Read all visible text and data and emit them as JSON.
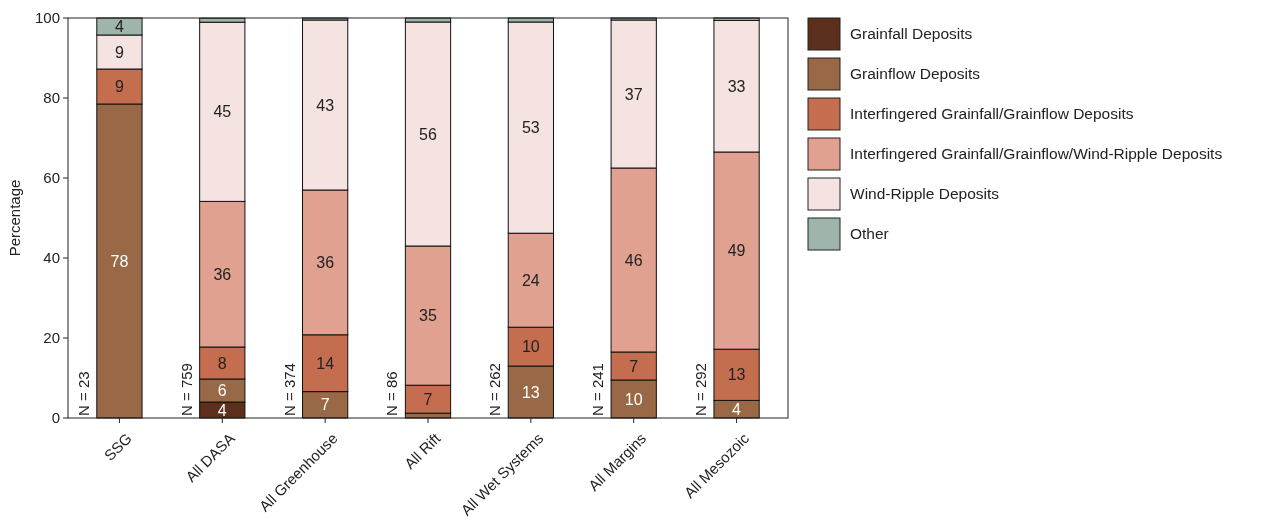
{
  "chart_data": {
    "type": "bar",
    "stacked": true,
    "ylabel": "Percentage",
    "categories": [
      "SSG",
      "All DASA",
      "All Greenhouse",
      "All Rift",
      "All Wet Systems",
      "All Margins",
      "All Mesozoic"
    ],
    "series": [
      {
        "name": "Grainfall Deposits",
        "color": "#5c301c",
        "values": [
          0,
          4,
          0,
          0,
          0,
          0,
          0
        ],
        "value_labels": [
          null,
          "4",
          null,
          null,
          null,
          null,
          null
        ]
      },
      {
        "name": "Grainflow Deposits",
        "color": "#996846",
        "values": [
          78.5,
          5.75,
          6.6,
          1.2,
          13,
          9.5,
          4.4
        ],
        "value_labels": [
          "78",
          "6",
          "7",
          null,
          "13",
          "10",
          "4"
        ]
      },
      {
        "name": "Interfingered Grainfall/Grainflow Deposits",
        "color": "#c46e4f",
        "values": [
          8.75,
          8,
          14.2,
          7,
          9.7,
          7,
          12.8
        ],
        "value_labels": [
          "9",
          "8",
          "14",
          "7",
          "10",
          "7",
          "13"
        ]
      },
      {
        "name": "Interfingered Grainfall/Grainflow/Wind-Ripple Deposits",
        "color": "#e0a190",
        "values": [
          0,
          36.4,
          36.2,
          34.8,
          23.5,
          46,
          49.3
        ],
        "value_labels": [
          null,
          "36",
          "36",
          "35",
          "24",
          "46",
          "49"
        ]
      },
      {
        "name": "Wind-Ripple Deposits",
        "color": "#f5e3e1",
        "values": [
          8.5,
          44.8,
          42.5,
          56,
          52.8,
          37,
          32.9
        ],
        "value_labels": [
          "9",
          "45",
          "43",
          "56",
          "53",
          "37",
          "33"
        ]
      },
      {
        "name": "Other",
        "color": "#9fb5ac",
        "values": [
          4.25,
          1,
          0.5,
          1,
          1,
          0.5,
          0.6
        ],
        "value_labels": [
          "4",
          null,
          null,
          null,
          null,
          null,
          null
        ]
      }
    ],
    "annotations": [
      {
        "text": "N = 23",
        "x": "SSG",
        "y": 0
      },
      {
        "text": "N = 759",
        "x": "All DASA",
        "y": 0
      },
      {
        "text": "N = 374",
        "x": "All Greenhouse",
        "y": 0
      },
      {
        "text": "N = 86",
        "x": "All Rift",
        "y": 0
      },
      {
        "text": "N = 262",
        "x": "All Wet Systems",
        "y": 0
      },
      {
        "text": "N = 241",
        "x": "All Margins",
        "y": 0
      },
      {
        "text": "N = 292",
        "x": "All Mesozoic",
        "y": 0
      }
    ],
    "ylim": [
      0,
      100
    ],
    "yticks": [
      0,
      20,
      40,
      60,
      80,
      100
    ],
    "legend": "right"
  }
}
